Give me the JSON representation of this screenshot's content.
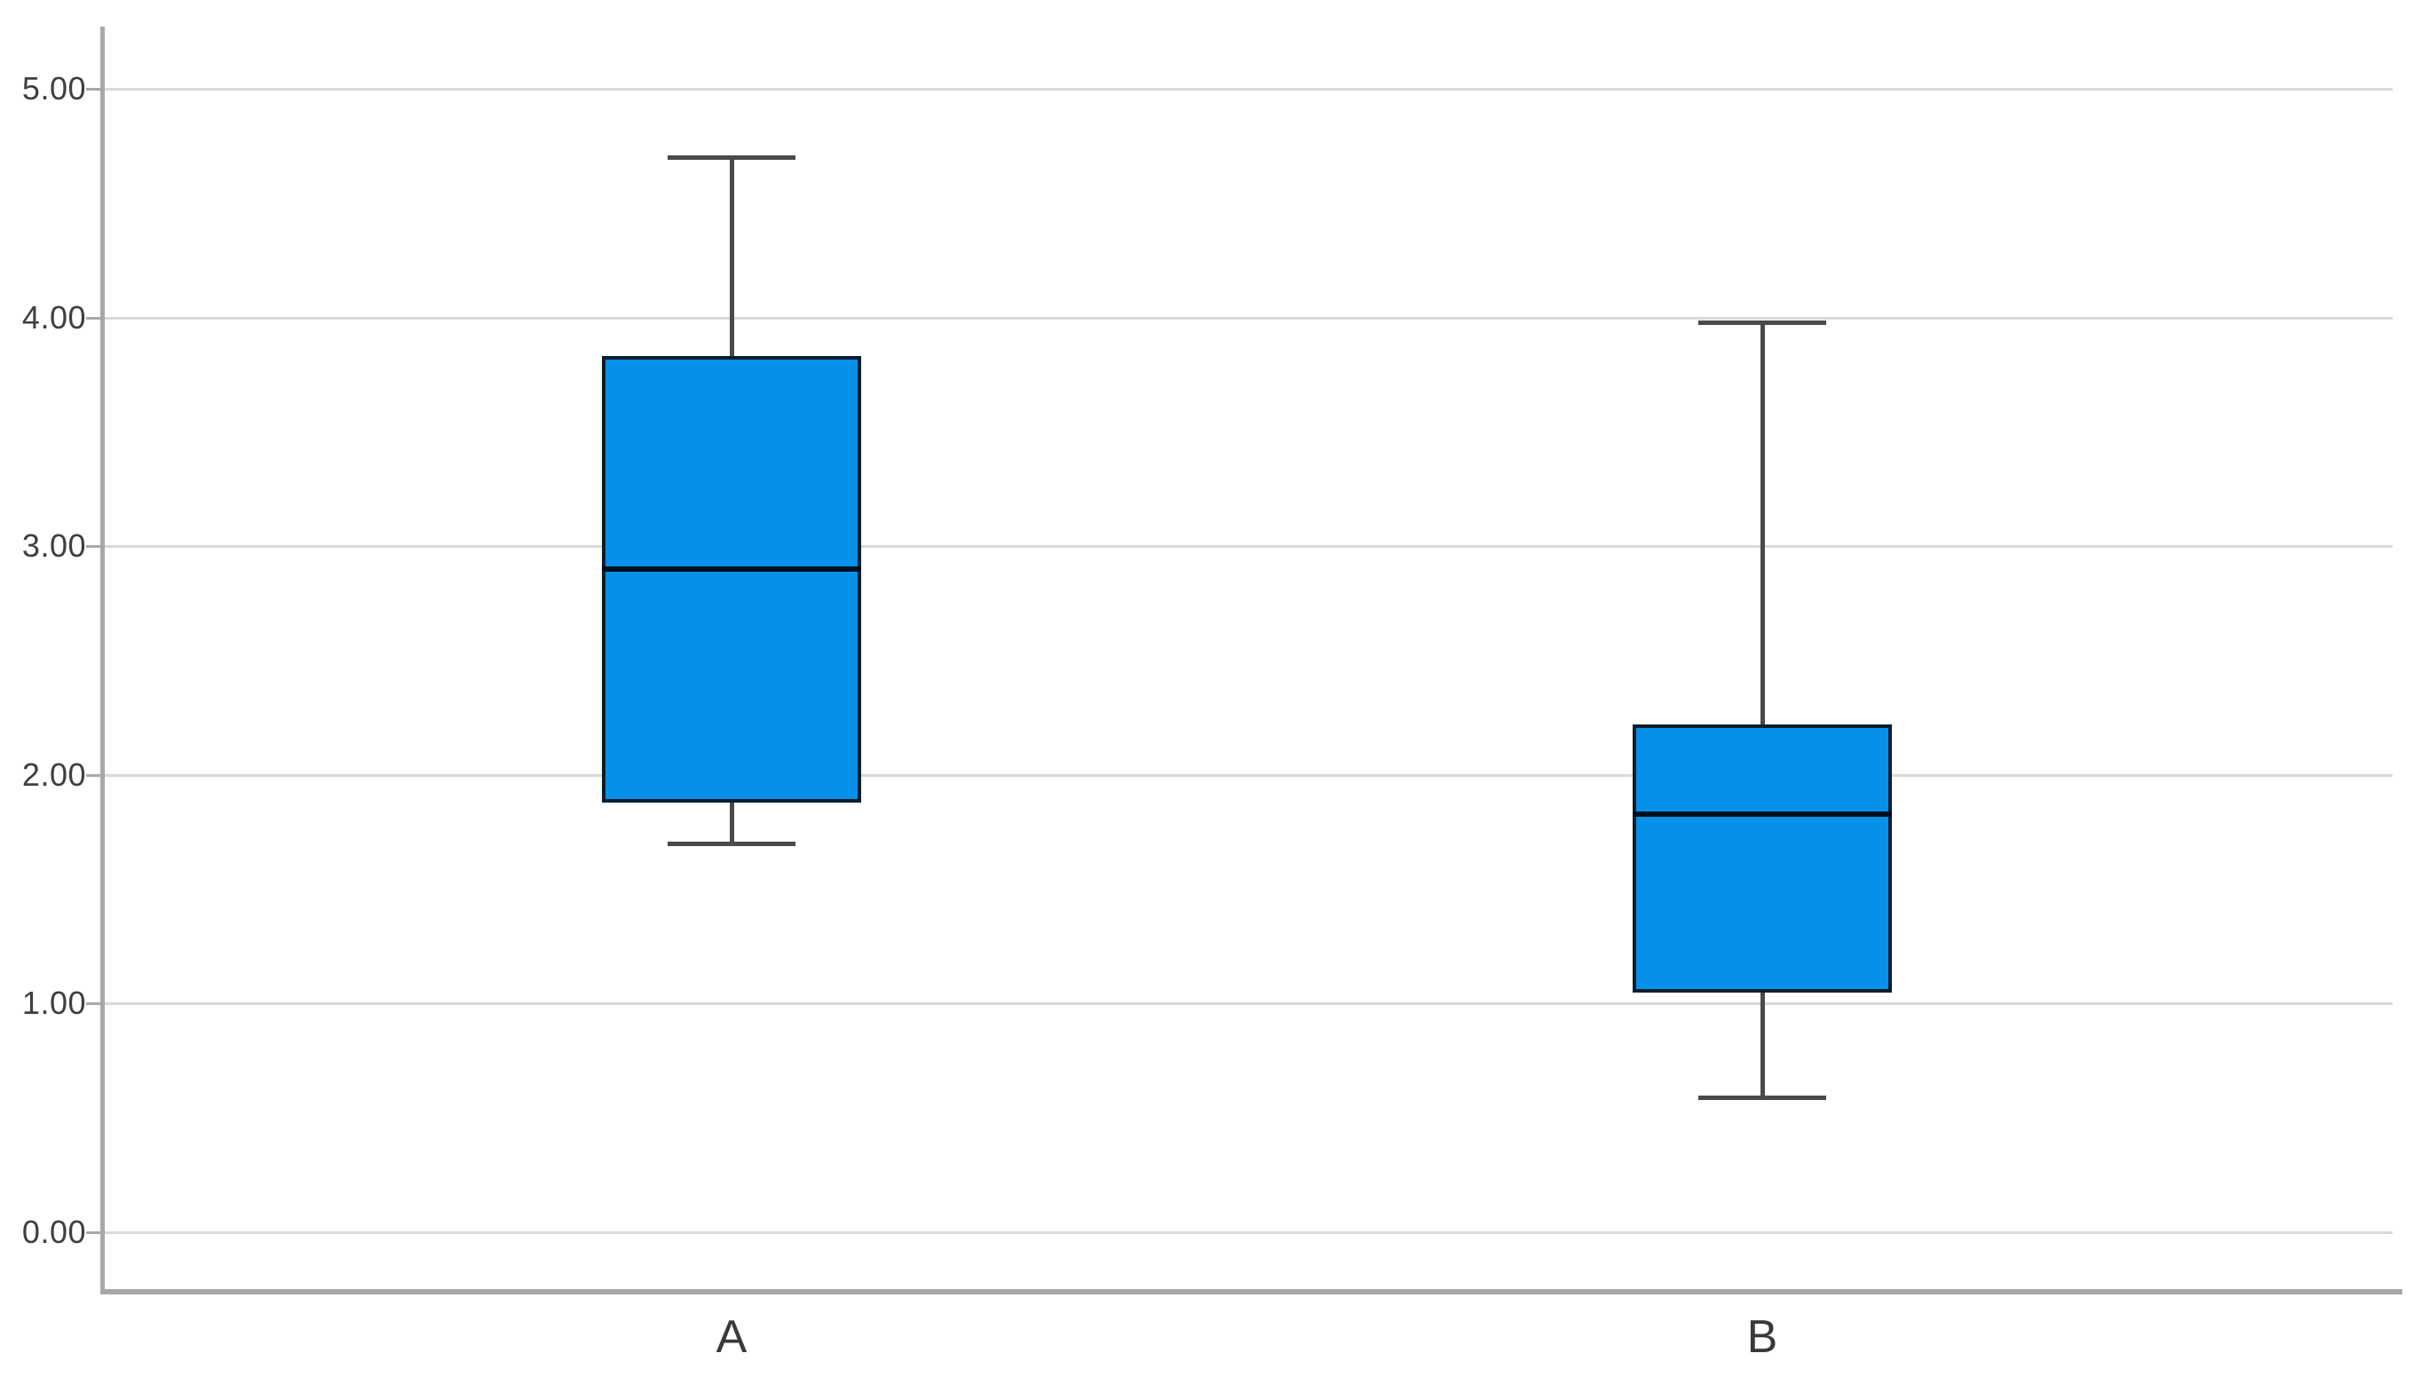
{
  "chart_data": {
    "type": "boxplot",
    "title": "",
    "categories": [
      "A",
      "B"
    ],
    "series": [
      {
        "category": "A",
        "min": 1.7,
        "q1": 1.88,
        "median": 2.9,
        "q3": 3.83,
        "max": 4.7
      },
      {
        "category": "B",
        "min": 0.59,
        "q1": 1.05,
        "median": 1.83,
        "q3": 2.22,
        "max": 3.98
      }
    ],
    "y_axis": {
      "ticks": [
        {
          "value": 5,
          "label": "5.00"
        },
        {
          "value": 4,
          "label": "4.00"
        },
        {
          "value": 3,
          "label": "3.00"
        },
        {
          "value": 2,
          "label": "2.00"
        },
        {
          "value": 1,
          "label": "1.00"
        },
        {
          "value": 0,
          "label": "0.00"
        }
      ],
      "range_shown": [
        -0.25,
        5.27
      ],
      "grid": true
    },
    "x_axis": {
      "labels": [
        "A",
        "B"
      ]
    },
    "legend": "none",
    "colors": {
      "box_fill": "#0590EA",
      "box_border": "#0B1E2D",
      "median": "#00101F",
      "whisker": "#4A4A4A",
      "grid": "#D9D9D9",
      "axis": "#A8A8A8",
      "tick_label": "#3F3F3F",
      "category_label": "#3A3A3A",
      "background": "#FFFFFF"
    }
  }
}
